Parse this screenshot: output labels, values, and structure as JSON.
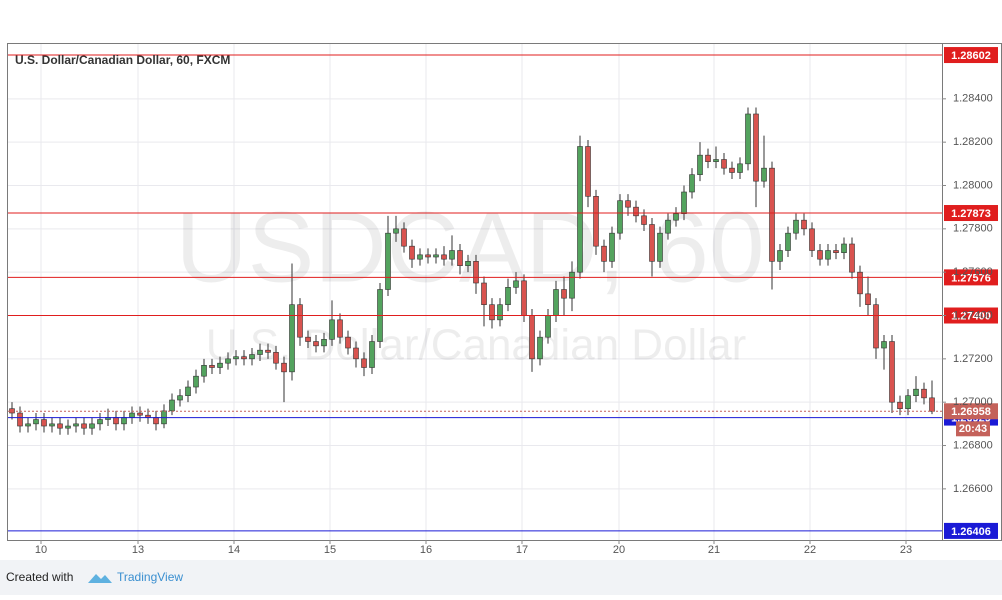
{
  "chart_data": {
    "type": "candlestick",
    "title": "U.S. Dollar/Canadian Dollar, 60, FXCM",
    "watermark": "USDCAD, 60",
    "watermark_subtitle": "U.S. Dollar/Canadian Dollar",
    "up_color": "#53a35e",
    "down_color": "#d9534f",
    "grid": true,
    "xlim": [
      -0.5,
      116.25
    ],
    "ylim": [
      1.26364,
      1.28653
    ],
    "yticks": [
      {
        "value": 1.266,
        "label": "1.26600"
      },
      {
        "value": 1.268,
        "label": "1.26800"
      },
      {
        "value": 1.27,
        "label": "1.27000"
      },
      {
        "value": 1.272,
        "label": "1.27200"
      },
      {
        "value": 1.274,
        "label": "1.27400"
      },
      {
        "value": 1.276,
        "label": "1.27600"
      },
      {
        "value": 1.278,
        "label": "1.27800"
      },
      {
        "value": 1.28,
        "label": "1.28000"
      },
      {
        "value": 1.282,
        "label": "1.28200"
      },
      {
        "value": 1.284,
        "label": "1.28400"
      }
    ],
    "xticks": [
      {
        "value": 3.625,
        "label": "10"
      },
      {
        "value": 15.75,
        "label": "13"
      },
      {
        "value": 27.75,
        "label": "14"
      },
      {
        "value": 39.75,
        "label": "15"
      },
      {
        "value": 51.75,
        "label": "16"
      },
      {
        "value": 63.75,
        "label": "17"
      },
      {
        "value": 75.875,
        "label": "20"
      },
      {
        "value": 87.75,
        "label": "21"
      },
      {
        "value": 99.75,
        "label": "22"
      },
      {
        "value": 111.75,
        "label": "23"
      }
    ],
    "levels": [
      {
        "value": 1.28602,
        "color": "#e01e1e"
      },
      {
        "value": 1.27873,
        "color": "#e01e1e"
      },
      {
        "value": 1.27576,
        "color": "#e01e1e"
      },
      {
        "value": 1.274,
        "label": "1.27400",
        "color": "#e01e1e"
      },
      {
        "value": 1.26929,
        "color": "#1a1ad6"
      },
      {
        "value": 1.26406,
        "color": "#1a1ad6"
      }
    ],
    "last": {
      "value": 1.26958,
      "countdown": "20:43",
      "color": "#c4615a"
    },
    "open": [
      1.2697,
      1.2695,
      1.2689,
      1.269,
      1.2692,
      1.2689,
      1.269,
      1.2688,
      1.2689,
      1.269,
      1.2688,
      1.269,
      1.2692,
      1.2693,
      1.269,
      1.2693,
      1.2695,
      1.2694,
      1.2693,
      1.269,
      1.2696,
      1.2701,
      1.2703,
      1.2707,
      1.2712,
      1.2717,
      1.2716,
      1.2718,
      1.272,
      1.2721,
      1.272,
      1.2722,
      1.2724,
      1.2723,
      1.2718,
      1.2714,
      1.2745,
      1.273,
      1.2728,
      1.2726,
      1.2729,
      1.2738,
      1.273,
      1.2725,
      1.272,
      1.2716,
      1.2728,
      1.2752,
      1.2778,
      1.278,
      1.2772,
      1.2766,
      1.2768,
      1.2767,
      1.2768,
      1.2766,
      1.277,
      1.2763,
      1.2765,
      1.2755,
      1.2745,
      1.2738,
      1.2745,
      1.2753,
      1.2756,
      1.274,
      1.272,
      1.273,
      1.274,
      1.2752,
      1.2748,
      1.276,
      1.2818,
      1.2795,
      1.2772,
      1.2765,
      1.2778,
      1.2793,
      1.279,
      1.2786,
      1.2782,
      1.2765,
      1.2778,
      1.2784,
      1.2787,
      1.2797,
      1.2805,
      1.2814,
      1.2811,
      1.2812,
      1.2808,
      1.2806,
      1.281,
      1.2833,
      1.2802,
      1.2808,
      1.2765,
      1.277,
      1.2778,
      1.2784,
      1.278,
      1.277,
      1.2766,
      1.277,
      1.2769,
      1.2773,
      1.276,
      1.275,
      1.2745,
      1.2725,
      1.2728,
      1.27,
      1.2697,
      1.2703,
      1.2706,
      1.2702
    ],
    "high": [
      1.27,
      1.2698,
      1.2693,
      1.2695,
      1.2695,
      1.2693,
      1.2693,
      1.2692,
      1.2693,
      1.2693,
      1.2693,
      1.2695,
      1.2697,
      1.2696,
      1.2696,
      1.2698,
      1.2698,
      1.2697,
      1.2696,
      1.2699,
      1.2704,
      1.2706,
      1.271,
      1.2715,
      1.272,
      1.272,
      1.2721,
      1.2723,
      1.2724,
      1.2724,
      1.2725,
      1.2727,
      1.2727,
      1.2726,
      1.2721,
      1.2764,
      1.2748,
      1.2733,
      1.2731,
      1.2732,
      1.2747,
      1.2741,
      1.2733,
      1.2728,
      1.2723,
      1.2731,
      1.2755,
      1.2786,
      1.2786,
      1.2783,
      1.2775,
      1.2771,
      1.2771,
      1.2771,
      1.2772,
      1.2777,
      1.2773,
      1.2768,
      1.2768,
      1.2758,
      1.2748,
      1.2748,
      1.2757,
      1.276,
      1.2759,
      1.2743,
      1.2733,
      1.2743,
      1.2756,
      1.2758,
      1.2765,
      1.2823,
      1.2821,
      1.2798,
      1.2775,
      1.2781,
      1.2796,
      1.2796,
      1.2793,
      1.2789,
      1.2785,
      1.2781,
      1.2787,
      1.279,
      1.28,
      1.2808,
      1.282,
      1.2817,
      1.2818,
      1.2815,
      1.2811,
      1.2813,
      1.2836,
      1.2836,
      1.2823,
      1.2811,
      1.2773,
      1.2781,
      1.2787,
      1.2787,
      1.2783,
      1.2773,
      1.2773,
      1.2773,
      1.2776,
      1.2776,
      1.2763,
      1.2758,
      1.2748,
      1.2731,
      1.2731,
      1.2703,
      1.2706,
      1.2712,
      1.2709,
      1.271
    ],
    "low": [
      1.2692,
      1.2686,
      1.2686,
      1.2687,
      1.2686,
      1.2686,
      1.2685,
      1.2685,
      1.2686,
      1.2685,
      1.2685,
      1.2687,
      1.2689,
      1.2687,
      1.2687,
      1.269,
      1.2691,
      1.269,
      1.2687,
      1.2688,
      1.2694,
      1.2698,
      1.27,
      1.2704,
      1.2709,
      1.2713,
      1.2713,
      1.2715,
      1.2717,
      1.2717,
      1.2717,
      1.2719,
      1.272,
      1.2715,
      1.27,
      1.271,
      1.2726,
      1.2725,
      1.2723,
      1.2723,
      1.2726,
      1.2727,
      1.2722,
      1.2716,
      1.2712,
      1.2713,
      1.2725,
      1.2749,
      1.2774,
      1.2769,
      1.2762,
      1.2763,
      1.2764,
      1.2764,
      1.2763,
      1.2763,
      1.2759,
      1.276,
      1.275,
      1.2735,
      1.2734,
      1.2735,
      1.2742,
      1.275,
      1.2737,
      1.2714,
      1.2717,
      1.2727,
      1.2737,
      1.274,
      1.2742,
      1.2757,
      1.279,
      1.2768,
      1.276,
      1.2762,
      1.2775,
      1.2786,
      1.2783,
      1.2779,
      1.2758,
      1.2762,
      1.2775,
      1.2781,
      1.2784,
      1.2794,
      1.2802,
      1.2808,
      1.2808,
      1.2805,
      1.2803,
      1.2803,
      1.2807,
      1.279,
      1.2799,
      1.2752,
      1.2761,
      1.2767,
      1.2775,
      1.2777,
      1.2767,
      1.2763,
      1.2763,
      1.2766,
      1.2766,
      1.2757,
      1.2744,
      1.274,
      1.272,
      1.2715,
      1.2695,
      1.2694,
      1.2694,
      1.27,
      1.2699,
      1.26945
    ],
    "close": [
      1.2695,
      1.2689,
      1.269,
      1.2692,
      1.2689,
      1.269,
      1.2688,
      1.2689,
      1.269,
      1.2688,
      1.269,
      1.2692,
      1.2693,
      1.269,
      1.2693,
      1.2695,
      1.2694,
      1.2693,
      1.269,
      1.2696,
      1.2701,
      1.2703,
      1.2707,
      1.2712,
      1.2717,
      1.2716,
      1.2718,
      1.272,
      1.2721,
      1.272,
      1.2722,
      1.2724,
      1.2723,
      1.2718,
      1.2714,
      1.2745,
      1.273,
      1.2728,
      1.2726,
      1.2729,
      1.2738,
      1.273,
      1.2725,
      1.272,
      1.2716,
      1.2728,
      1.2752,
      1.2778,
      1.278,
      1.2772,
      1.2766,
      1.2768,
      1.2767,
      1.2768,
      1.2766,
      1.277,
      1.2763,
      1.2765,
      1.2755,
      1.2745,
      1.2738,
      1.2745,
      1.2753,
      1.2756,
      1.274,
      1.272,
      1.273,
      1.274,
      1.2752,
      1.2748,
      1.276,
      1.2818,
      1.2795,
      1.2772,
      1.2765,
      1.2778,
      1.2793,
      1.279,
      1.2786,
      1.2782,
      1.2765,
      1.2778,
      1.2784,
      1.2787,
      1.2797,
      1.2805,
      1.2814,
      1.2811,
      1.2812,
      1.2808,
      1.2806,
      1.281,
      1.2833,
      1.2802,
      1.2808,
      1.2765,
      1.277,
      1.2778,
      1.2784,
      1.278,
      1.277,
      1.2766,
      1.277,
      1.2769,
      1.2773,
      1.276,
      1.275,
      1.2745,
      1.2725,
      1.2728,
      1.27,
      1.2697,
      1.2703,
      1.2706,
      1.2702,
      1.26958
    ]
  },
  "footer": {
    "prefix": "Created with",
    "brand": "TradingView"
  }
}
